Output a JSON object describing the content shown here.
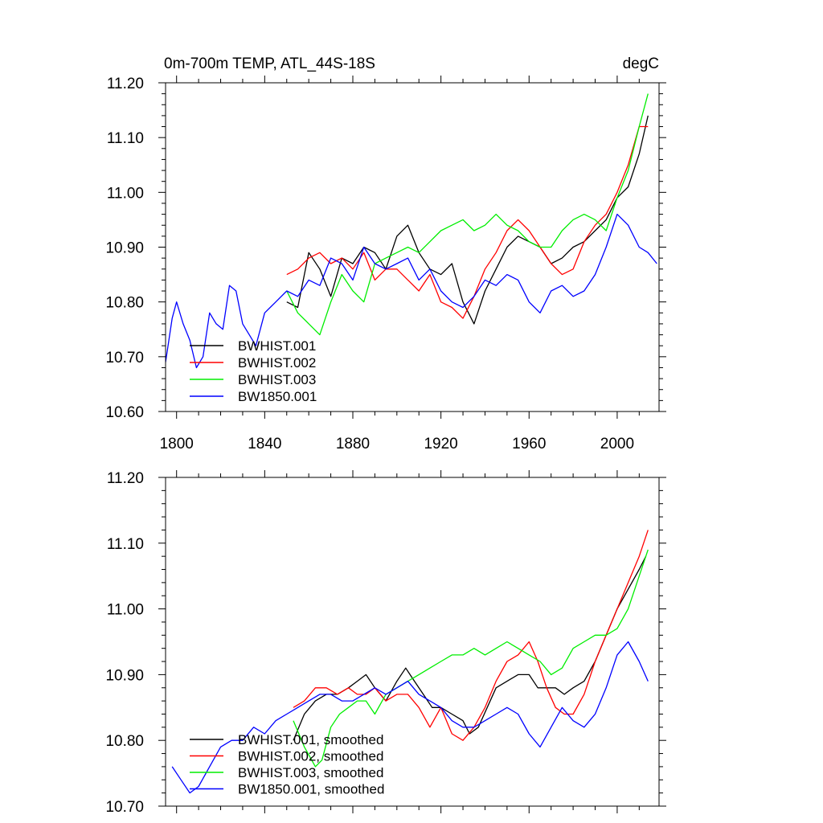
{
  "chart_data": [
    {
      "type": "line",
      "title": "0m-700m TEMP, ATL_44S-18S",
      "units": "degC",
      "xlim": [
        1795,
        2019
      ],
      "ylim": [
        10.6,
        11.2
      ],
      "x_ticks": [
        1800,
        1840,
        1880,
        1920,
        1960,
        2000
      ],
      "y_ticks": [
        10.6,
        10.7,
        10.8,
        10.9,
        11.0,
        11.1,
        11.2
      ],
      "y_tick_labels": [
        "10.60",
        "10.70",
        "10.80",
        "10.90",
        "11.00",
        "11.10",
        "11.20"
      ],
      "legend_location": "lower-left",
      "series": [
        {
          "name": "BWHIST.001",
          "color": "#000000",
          "x": [
            1850,
            1855,
            1860,
            1865,
            1870,
            1875,
            1880,
            1885,
            1890,
            1895,
            1900,
            1905,
            1910,
            1915,
            1920,
            1925,
            1930,
            1935,
            1940,
            1945,
            1950,
            1955,
            1960,
            1965,
            1970,
            1975,
            1980,
            1985,
            1990,
            1995,
            2000,
            2005,
            2010,
            2014
          ],
          "y": [
            10.8,
            10.79,
            10.89,
            10.86,
            10.81,
            10.88,
            10.87,
            10.9,
            10.89,
            10.86,
            10.92,
            10.94,
            10.89,
            10.86,
            10.85,
            10.87,
            10.8,
            10.76,
            10.82,
            10.86,
            10.9,
            10.92,
            10.91,
            10.9,
            10.87,
            10.88,
            10.9,
            10.91,
            10.93,
            10.95,
            10.99,
            11.01,
            11.07,
            11.14
          ]
        },
        {
          "name": "BWHIST.002",
          "color": "#ff0000",
          "x": [
            1850,
            1855,
            1860,
            1865,
            1870,
            1875,
            1880,
            1885,
            1890,
            1895,
            1900,
            1905,
            1910,
            1915,
            1920,
            1925,
            1930,
            1935,
            1940,
            1945,
            1950,
            1955,
            1960,
            1965,
            1970,
            1975,
            1980,
            1985,
            1990,
            1995,
            2000,
            2005,
            2010,
            2014
          ],
          "y": [
            10.85,
            10.86,
            10.88,
            10.89,
            10.87,
            10.88,
            10.86,
            10.89,
            10.84,
            10.86,
            10.86,
            10.84,
            10.82,
            10.85,
            10.8,
            10.79,
            10.77,
            10.81,
            10.86,
            10.89,
            10.93,
            10.95,
            10.93,
            10.9,
            10.87,
            10.85,
            10.86,
            10.91,
            10.94,
            10.96,
            11.0,
            11.05,
            11.12,
            11.12
          ]
        },
        {
          "name": "BWHIST.003",
          "color": "#00ee00",
          "x": [
            1850,
            1855,
            1860,
            1865,
            1870,
            1875,
            1880,
            1885,
            1890,
            1895,
            1900,
            1905,
            1910,
            1915,
            1920,
            1925,
            1930,
            1935,
            1940,
            1945,
            1950,
            1955,
            1960,
            1965,
            1970,
            1975,
            1980,
            1985,
            1990,
            1995,
            2000,
            2005,
            2010,
            2014
          ],
          "y": [
            10.82,
            10.78,
            10.76,
            10.74,
            10.8,
            10.85,
            10.82,
            10.8,
            10.87,
            10.88,
            10.89,
            10.9,
            10.89,
            10.91,
            10.93,
            10.94,
            10.95,
            10.93,
            10.94,
            10.96,
            10.94,
            10.93,
            10.91,
            10.9,
            10.9,
            10.93,
            10.95,
            10.96,
            10.95,
            10.93,
            10.99,
            11.04,
            11.12,
            11.18
          ]
        },
        {
          "name": "BW1850.001",
          "color": "#0000ff",
          "x": [
            1795,
            1798,
            1800,
            1803,
            1806,
            1809,
            1812,
            1815,
            1818,
            1821,
            1824,
            1827,
            1830,
            1833,
            1836,
            1840,
            1845,
            1850,
            1855,
            1860,
            1865,
            1870,
            1875,
            1880,
            1885,
            1890,
            1895,
            1900,
            1905,
            1910,
            1915,
            1920,
            1925,
            1930,
            1935,
            1940,
            1945,
            1950,
            1955,
            1960,
            1965,
            1970,
            1975,
            1980,
            1985,
            1990,
            1995,
            2000,
            2005,
            2010,
            2014,
            2018
          ],
          "y": [
            10.69,
            10.77,
            10.8,
            10.76,
            10.73,
            10.68,
            10.7,
            10.78,
            10.76,
            10.75,
            10.83,
            10.82,
            10.76,
            10.74,
            10.72,
            10.78,
            10.8,
            10.82,
            10.81,
            10.84,
            10.83,
            10.88,
            10.87,
            10.84,
            10.9,
            10.87,
            10.86,
            10.87,
            10.88,
            10.84,
            10.86,
            10.82,
            10.8,
            10.79,
            10.81,
            10.84,
            10.83,
            10.85,
            10.84,
            10.8,
            10.78,
            10.82,
            10.83,
            10.81,
            10.82,
            10.85,
            10.9,
            10.96,
            10.94,
            10.9,
            10.89,
            10.87
          ]
        }
      ]
    },
    {
      "type": "line",
      "title": "",
      "xlim": [
        1795,
        2019
      ],
      "ylim": [
        10.7,
        11.2
      ],
      "x_ticks": [
        1800,
        1840,
        1880,
        1920,
        1960,
        2000
      ],
      "y_ticks": [
        10.7,
        10.8,
        10.9,
        11.0,
        11.1,
        11.2
      ],
      "y_tick_labels": [
        "10.70",
        "10.80",
        "10.90",
        "11.00",
        "11.10",
        "11.20"
      ],
      "legend_location": "lower-left",
      "series": [
        {
          "name": "BWHIST.001, smoothed",
          "color": "#000000",
          "x": [
            1853,
            1858,
            1863,
            1868,
            1873,
            1878,
            1882,
            1886,
            1890,
            1895,
            1900,
            1904,
            1908,
            1912,
            1916,
            1920,
            1925,
            1930,
            1933,
            1937,
            1941,
            1945,
            1950,
            1955,
            1960,
            1964,
            1968,
            1972,
            1976,
            1980,
            1985,
            1990,
            1995,
            2000,
            2005,
            2010,
            2013
          ],
          "y": [
            10.8,
            10.84,
            10.86,
            10.87,
            10.87,
            10.88,
            10.89,
            10.9,
            10.88,
            10.86,
            10.89,
            10.91,
            10.89,
            10.87,
            10.85,
            10.85,
            10.84,
            10.83,
            10.81,
            10.82,
            10.85,
            10.88,
            10.89,
            10.9,
            10.9,
            10.88,
            10.88,
            10.88,
            10.87,
            10.88,
            10.89,
            10.92,
            10.96,
            11.0,
            11.03,
            11.06,
            11.08
          ]
        },
        {
          "name": "BWHIST.002, smoothed",
          "color": "#ff0000",
          "x": [
            1853,
            1858,
            1863,
            1868,
            1873,
            1878,
            1882,
            1886,
            1890,
            1895,
            1900,
            1905,
            1910,
            1915,
            1920,
            1925,
            1930,
            1935,
            1940,
            1945,
            1950,
            1955,
            1960,
            1964,
            1968,
            1972,
            1976,
            1980,
            1985,
            1990,
            1995,
            2000,
            2005,
            2010,
            2014
          ],
          "y": [
            10.85,
            10.86,
            10.88,
            10.88,
            10.87,
            10.88,
            10.87,
            10.87,
            10.88,
            10.86,
            10.87,
            10.87,
            10.85,
            10.82,
            10.85,
            10.81,
            10.8,
            10.82,
            10.85,
            10.89,
            10.92,
            10.93,
            10.95,
            10.92,
            10.88,
            10.85,
            10.84,
            10.84,
            10.87,
            10.92,
            10.96,
            11.0,
            11.04,
            11.08,
            11.12
          ]
        },
        {
          "name": "BWHIST.003, smoothed",
          "color": "#00ee00",
          "x": [
            1853,
            1858,
            1863,
            1866,
            1870,
            1874,
            1878,
            1882,
            1886,
            1890,
            1895,
            1900,
            1905,
            1910,
            1915,
            1920,
            1925,
            1930,
            1935,
            1940,
            1945,
            1950,
            1955,
            1960,
            1965,
            1970,
            1975,
            1980,
            1985,
            1990,
            1995,
            2000,
            2005,
            2010,
            2014
          ],
          "y": [
            10.83,
            10.79,
            10.76,
            10.77,
            10.82,
            10.84,
            10.85,
            10.86,
            10.86,
            10.84,
            10.87,
            10.88,
            10.89,
            10.9,
            10.91,
            10.92,
            10.93,
            10.93,
            10.94,
            10.93,
            10.94,
            10.95,
            10.94,
            10.93,
            10.92,
            10.9,
            10.91,
            10.94,
            10.95,
            10.96,
            10.96,
            10.97,
            11.0,
            11.05,
            11.09
          ]
        },
        {
          "name": "BW1850.001, smoothed",
          "color": "#0000ff",
          "x": [
            1798,
            1802,
            1806,
            1810,
            1815,
            1820,
            1825,
            1830,
            1835,
            1840,
            1845,
            1850,
            1855,
            1860,
            1865,
            1870,
            1875,
            1880,
            1885,
            1890,
            1895,
            1900,
            1905,
            1910,
            1915,
            1920,
            1925,
            1930,
            1935,
            1940,
            1945,
            1950,
            1955,
            1960,
            1965,
            1970,
            1975,
            1980,
            1985,
            1990,
            1995,
            2000,
            2005,
            2010,
            2014
          ],
          "y": [
            10.76,
            10.74,
            10.72,
            10.73,
            10.76,
            10.79,
            10.8,
            10.8,
            10.82,
            10.81,
            10.83,
            10.84,
            10.85,
            10.86,
            10.87,
            10.87,
            10.86,
            10.86,
            10.87,
            10.88,
            10.87,
            10.88,
            10.89,
            10.87,
            10.86,
            10.85,
            10.83,
            10.82,
            10.82,
            10.83,
            10.84,
            10.85,
            10.84,
            10.81,
            10.79,
            10.82,
            10.85,
            10.83,
            10.82,
            10.84,
            10.88,
            10.93,
            10.95,
            10.92,
            10.89
          ]
        }
      ]
    }
  ]
}
